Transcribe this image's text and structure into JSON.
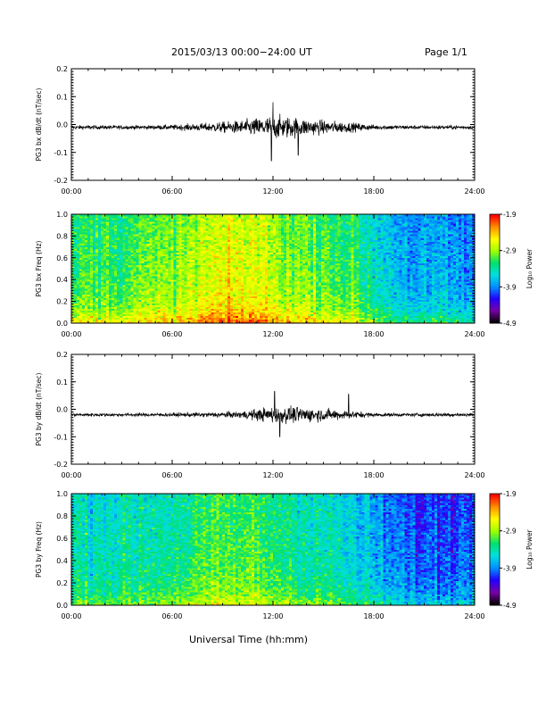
{
  "header": {
    "title": "2015/03/13  00:00−24:00 UT",
    "page": "Page 1/1"
  },
  "x_caption": "Universal Time (hh:mm)",
  "chart_data": [
    {
      "type": "line",
      "title": "",
      "ylabel": "PG3 bx dB/dt (nT/sec)",
      "xlabel": "",
      "x_ticks": [
        "00:00",
        "06:00",
        "12:00",
        "18:00",
        "24:00"
      ],
      "xlim": [
        0,
        24
      ],
      "ylim": [
        -0.2,
        0.2
      ],
      "y_ticks": [
        "-0.2",
        "-0.1",
        "0.0",
        "0.1",
        "0.2"
      ],
      "series": [
        {
          "baseline": -0.01,
          "envelope_hours": [
            0,
            2,
            4,
            6,
            8,
            10,
            11,
            12,
            13,
            14,
            16,
            18,
            20,
            22,
            24
          ],
          "envelope_amp": [
            0.012,
            0.012,
            0.012,
            0.015,
            0.025,
            0.04,
            0.055,
            0.07,
            0.065,
            0.05,
            0.035,
            0.015,
            0.012,
            0.012,
            0.012
          ],
          "peaks": [
            {
              "x": 12.0,
              "y": 0.08
            },
            {
              "x": 11.9,
              "y": -0.13
            },
            {
              "x": 13.5,
              "y": -0.11
            }
          ]
        }
      ],
      "grid": false
    },
    {
      "type": "heatmap",
      "title": "",
      "ylabel": "PG3 bx Freq (Hz)",
      "xlabel": "",
      "x_ticks": [
        "00:00",
        "06:00",
        "12:00",
        "18:00",
        "24:00"
      ],
      "xlim": [
        0,
        24
      ],
      "ylim": [
        0,
        1.0
      ],
      "y_ticks": [
        "0.0",
        "0.2",
        "0.4",
        "0.6",
        "0.8",
        "1.0"
      ],
      "colorbar": {
        "label": "Log₁₀ Power",
        "ticks": [
          "-1.9",
          "-2.9",
          "-3.9",
          "-4.9"
        ],
        "range": [
          -4.9,
          -1.9
        ]
      },
      "hour_profile": {
        "hours": [
          0,
          3,
          6,
          9,
          11,
          12,
          13,
          15,
          17,
          18,
          20,
          22,
          24
        ],
        "level": [
          -3.1,
          -3.05,
          -2.9,
          -2.6,
          -2.6,
          -2.75,
          -2.85,
          -2.95,
          -3.15,
          -3.4,
          -3.7,
          -3.75,
          -3.8
        ]
      },
      "low_freq_boost": 0.55,
      "colors": [
        "#000000",
        "#7a00a8",
        "#2200ff",
        "#0090ff",
        "#00e0e0",
        "#00e070",
        "#a0ff00",
        "#ffff00",
        "#ff9000",
        "#ff0000"
      ]
    },
    {
      "type": "line",
      "title": "",
      "ylabel": "PG3 by dB/dt (nT/sec)",
      "xlabel": "",
      "x_ticks": [
        "00:00",
        "06:00",
        "12:00",
        "18:00",
        "24:00"
      ],
      "xlim": [
        0,
        24
      ],
      "ylim": [
        -0.2,
        0.2
      ],
      "y_ticks": [
        "-0.2",
        "-0.1",
        "0.0",
        "0.1",
        "0.2"
      ],
      "series": [
        {
          "baseline": -0.02,
          "envelope_hours": [
            0,
            2,
            4,
            6,
            8,
            10,
            11,
            12,
            13,
            14,
            16,
            18,
            20,
            22,
            24
          ],
          "envelope_amp": [
            0.01,
            0.01,
            0.01,
            0.012,
            0.015,
            0.02,
            0.035,
            0.05,
            0.05,
            0.045,
            0.03,
            0.012,
            0.01,
            0.012,
            0.012
          ],
          "peaks": [
            {
              "x": 12.1,
              "y": 0.065
            },
            {
              "x": 12.4,
              "y": -0.1
            },
            {
              "x": 16.5,
              "y": 0.055
            }
          ]
        }
      ],
      "grid": false
    },
    {
      "type": "heatmap",
      "title": "",
      "ylabel": "PG3 by Freq (Hz)",
      "xlabel": "",
      "x_ticks": [
        "00:00",
        "06:00",
        "12:00",
        "18:00",
        "24:00"
      ],
      "xlim": [
        0,
        24
      ],
      "ylim": [
        0,
        1.0
      ],
      "y_ticks": [
        "0.0",
        "0.2",
        "0.4",
        "0.6",
        "0.8",
        "1.0"
      ],
      "colorbar": {
        "label": "Log₁₀ Power",
        "ticks": [
          "-1.9",
          "-2.9",
          "-3.9",
          "-4.9"
        ],
        "range": [
          -4.9,
          -1.9
        ]
      },
      "hour_profile": {
        "hours": [
          0,
          3,
          6,
          9,
          11,
          12,
          13,
          15,
          17,
          18,
          20,
          22,
          24
        ],
        "level": [
          -3.35,
          -3.35,
          -3.25,
          -3.05,
          -3.05,
          -3.15,
          -3.2,
          -3.35,
          -3.55,
          -3.7,
          -3.95,
          -4.0,
          -3.9
        ]
      },
      "low_freq_boost": 0.4,
      "colors": [
        "#000000",
        "#7a00a8",
        "#2200ff",
        "#0090ff",
        "#00e0e0",
        "#00e070",
        "#a0ff00",
        "#ffff00",
        "#ff9000",
        "#ff0000"
      ]
    }
  ]
}
